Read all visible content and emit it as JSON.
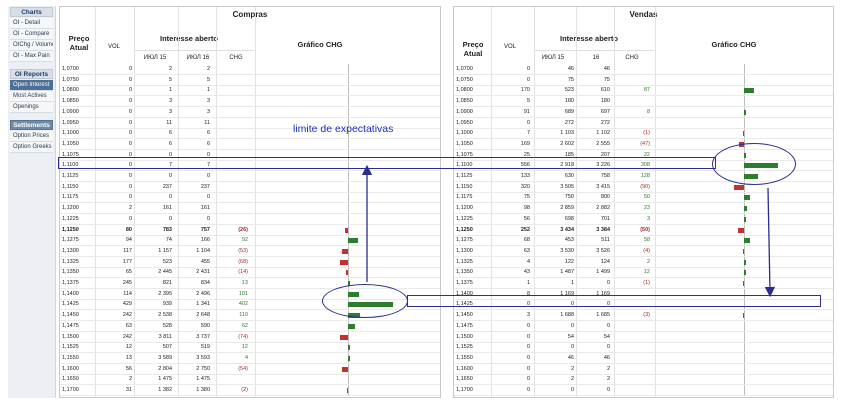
{
  "sidebar": {
    "charts_header": "Charts",
    "charts_items": [
      "OI - Detail",
      "OI - Compare",
      "OIChg / Volume",
      "OI - Max Pain"
    ],
    "oi_header": "OI Reports",
    "oi_items": [
      "Open Interest",
      "Most Actives",
      "Openings"
    ],
    "settlements_header": "Settlements",
    "settlements_items": [
      "Option Prices",
      "Option Greeks"
    ]
  },
  "compras": {
    "title": "Compras",
    "headers": {
      "price": "Preço Atual",
      "vol": "VOL",
      "group": "Interesse aberto",
      "col1": "ИЮЛ 15",
      "col2": "ИЮЛ 16",
      "chg": "CHG",
      "chart": "Gráfico CHG"
    },
    "rows": [
      {
        "p": "1,0700",
        "v": "0",
        "a": "2",
        "b": "2",
        "c": ""
      },
      {
        "p": "1,0750",
        "v": "0",
        "a": "5",
        "b": "5",
        "c": ""
      },
      {
        "p": "1,0800",
        "v": "0",
        "a": "1",
        "b": "1",
        "c": ""
      },
      {
        "p": "1,0850",
        "v": "0",
        "a": "3",
        "b": "3",
        "c": ""
      },
      {
        "p": "1,0900",
        "v": "0",
        "a": "3",
        "b": "3",
        "c": ""
      },
      {
        "p": "1,0950",
        "v": "0",
        "a": "11",
        "b": "11",
        "c": ""
      },
      {
        "p": "1,1000",
        "v": "0",
        "a": "6",
        "b": "6",
        "c": ""
      },
      {
        "p": "1,1050",
        "v": "0",
        "a": "6",
        "b": "6",
        "c": ""
      },
      {
        "p": "1,1075",
        "v": "0",
        "a": "0",
        "b": "0",
        "c": ""
      },
      {
        "p": "1,1100",
        "v": "0",
        "a": "7",
        "b": "7",
        "c": ""
      },
      {
        "p": "1,1125",
        "v": "0",
        "a": "0",
        "b": "0",
        "c": ""
      },
      {
        "p": "1,1150",
        "v": "0",
        "a": "237",
        "b": "237",
        "c": ""
      },
      {
        "p": "1,1175",
        "v": "0",
        "a": "0",
        "b": "0",
        "c": ""
      },
      {
        "p": "1,1200",
        "v": "2",
        "a": "161",
        "b": "161",
        "c": ""
      },
      {
        "p": "1,1225",
        "v": "0",
        "a": "0",
        "b": "0",
        "c": ""
      },
      {
        "p": "1,1250",
        "v": "80",
        "a": "783",
        "b": "757",
        "c": "(26)",
        "bold": true
      },
      {
        "p": "1,1275",
        "v": "94",
        "a": "74",
        "b": "166",
        "c": "92"
      },
      {
        "p": "1,1300",
        "v": "117",
        "a": "1 157",
        "b": "1 104",
        "c": "(53)"
      },
      {
        "p": "1,1325",
        "v": "177",
        "a": "523",
        "b": "455",
        "c": "(68)"
      },
      {
        "p": "1,1350",
        "v": "65",
        "a": "2 445",
        "b": "2 431",
        "c": "(14)"
      },
      {
        "p": "1,1375",
        "v": "245",
        "a": "821",
        "b": "834",
        "c": "13"
      },
      {
        "p": "1,1400",
        "v": "114",
        "a": "2 395",
        "b": "2 496",
        "c": "101"
      },
      {
        "p": "1,1425",
        "v": "429",
        "a": "939",
        "b": "1 341",
        "c": "402"
      },
      {
        "p": "1,1450",
        "v": "242",
        "a": "2 538",
        "b": "2 648",
        "c": "110"
      },
      {
        "p": "1,1475",
        "v": "63",
        "a": "528",
        "b": "590",
        "c": "62"
      },
      {
        "p": "1,1500",
        "v": "242",
        "a": "3 811",
        "b": "3 737",
        "c": "(74)"
      },
      {
        "p": "1,1525",
        "v": "12",
        "a": "507",
        "b": "519",
        "c": "12"
      },
      {
        "p": "1,1550",
        "v": "13",
        "a": "3 589",
        "b": "3 593",
        "c": "4"
      },
      {
        "p": "1,1600",
        "v": "56",
        "a": "2 804",
        "b": "2 750",
        "c": "(54)"
      },
      {
        "p": "1,1650",
        "v": "2",
        "a": "1 475",
        "b": "1 475",
        "c": ""
      },
      {
        "p": "1,1700",
        "v": "31",
        "a": "1 382",
        "b": "1 380",
        "c": "(2)"
      }
    ]
  },
  "vendas": {
    "title": "Vendas",
    "headers": {
      "price": "Preço Atual",
      "vol": "VOL",
      "group": "Interesse aberto",
      "col1": "ИЮЛ 15",
      "col2": "16",
      "chg": "CHG",
      "chart": "Gráfico CHG"
    },
    "rows": [
      {
        "p": "1,0700",
        "v": "0",
        "a": "46",
        "b": "46",
        "c": ""
      },
      {
        "p": "1,0750",
        "v": "0",
        "a": "75",
        "b": "75",
        "c": ""
      },
      {
        "p": "1,0800",
        "v": "170",
        "a": "523",
        "b": "610",
        "c": "87"
      },
      {
        "p": "1,0850",
        "v": "5",
        "a": "180",
        "b": "180",
        "c": ""
      },
      {
        "p": "1,0900",
        "v": "91",
        "a": "689",
        "b": "697",
        "c": "8"
      },
      {
        "p": "1,0950",
        "v": "0",
        "a": "272",
        "b": "272",
        "c": ""
      },
      {
        "p": "1,1000",
        "v": "7",
        "a": "1 103",
        "b": "1 102",
        "c": "(1)"
      },
      {
        "p": "1,1050",
        "v": "169",
        "a": "2 602",
        "b": "2 555",
        "c": "(47)"
      },
      {
        "p": "1,1075",
        "v": "25",
        "a": "185",
        "b": "207",
        "c": "22"
      },
      {
        "p": "1,1100",
        "v": "556",
        "a": "2 918",
        "b": "3 226",
        "c": "308"
      },
      {
        "p": "1,1125",
        "v": "133",
        "a": "630",
        "b": "758",
        "c": "128"
      },
      {
        "p": "1,1150",
        "v": "320",
        "a": "3 505",
        "b": "3 415",
        "c": "(90)"
      },
      {
        "p": "1,1175",
        "v": "75",
        "a": "750",
        "b": "800",
        "c": "50"
      },
      {
        "p": "1,1200",
        "v": "98",
        "a": "2 859",
        "b": "2 882",
        "c": "23"
      },
      {
        "p": "1,1225",
        "v": "56",
        "a": "698",
        "b": "701",
        "c": "3"
      },
      {
        "p": "1,1250",
        "v": "252",
        "a": "3 434",
        "b": "3 384",
        "c": "(50)",
        "bold": true
      },
      {
        "p": "1,1275",
        "v": "68",
        "a": "453",
        "b": "511",
        "c": "58"
      },
      {
        "p": "1,1300",
        "v": "63",
        "a": "3 530",
        "b": "3 526",
        "c": "(4)"
      },
      {
        "p": "1,1325",
        "v": "4",
        "a": "122",
        "b": "124",
        "c": "2"
      },
      {
        "p": "1,1350",
        "v": "43",
        "a": "1 487",
        "b": "1 499",
        "c": "12"
      },
      {
        "p": "1,1375",
        "v": "1",
        "a": "1",
        "b": "0",
        "c": "(1)"
      },
      {
        "p": "1,1400",
        "v": "8",
        "a": "1 169",
        "b": "1 169",
        "c": ""
      },
      {
        "p": "1,1425",
        "v": "0",
        "a": "0",
        "b": "0",
        "c": ""
      },
      {
        "p": "1,1450",
        "v": "3",
        "a": "1 688",
        "b": "1 685",
        "c": "(3)"
      },
      {
        "p": "1,1475",
        "v": "0",
        "a": "0",
        "b": "0",
        "c": ""
      },
      {
        "p": "1,1500",
        "v": "0",
        "a": "54",
        "b": "54",
        "c": ""
      },
      {
        "p": "1,1525",
        "v": "0",
        "a": "0",
        "b": "0",
        "c": ""
      },
      {
        "p": "1,1550",
        "v": "0",
        "a": "46",
        "b": "46",
        "c": ""
      },
      {
        "p": "1,1600",
        "v": "0",
        "a": "2",
        "b": "2",
        "c": ""
      },
      {
        "p": "1,1650",
        "v": "0",
        "a": "2",
        "b": "2",
        "c": ""
      },
      {
        "p": "1,1700",
        "v": "0",
        "a": "0",
        "b": "0",
        "c": ""
      }
    ]
  },
  "annotation": {
    "text": "limite de expectativas"
  },
  "colors": {
    "positive": "#2e7d2e",
    "negative": "#c23232",
    "annotation": "#1a33b8",
    "sidebar_active": "#4e6f95"
  }
}
